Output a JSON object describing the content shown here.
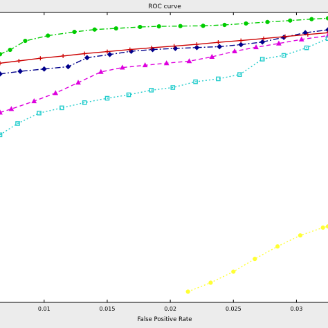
{
  "chart_data": {
    "type": "line",
    "title": "ROC curve",
    "xlabel": "False Positive Rate",
    "ylabel": "",
    "xlim": [
      0.0065,
      0.0325
    ],
    "ylim": [
      0.0,
      1.0
    ],
    "x_ticks": [
      0.01,
      0.015,
      0.02,
      0.025,
      0.03
    ],
    "x_tick_labels": [
      "0.01",
      "0.015",
      "0.02",
      "0.025",
      "0.03"
    ],
    "grid": false,
    "series": [
      {
        "color": "#00cc00",
        "dash": "7,3,2,3",
        "marker": "circle",
        "x": [
          0.0065,
          0.0073,
          0.0085,
          0.0103,
          0.0124,
          0.014,
          0.0157,
          0.0176,
          0.0191,
          0.0208,
          0.0226,
          0.0243,
          0.026,
          0.0277,
          0.0295,
          0.0312,
          0.0325
        ],
        "y": [
          0.856,
          0.871,
          0.902,
          0.92,
          0.933,
          0.941,
          0.945,
          0.95,
          0.952,
          0.953,
          0.954,
          0.957,
          0.962,
          0.967,
          0.972,
          0.977,
          0.98
        ]
      },
      {
        "color": "#00008b",
        "dash": "8,3,2,3",
        "marker": "diamond",
        "x": [
          0.0065,
          0.0081,
          0.01,
          0.0119,
          0.0134,
          0.0152,
          0.0169,
          0.0186,
          0.0204,
          0.0221,
          0.0239,
          0.0256,
          0.0273,
          0.029,
          0.0307,
          0.0325
        ],
        "y": [
          0.788,
          0.797,
          0.805,
          0.813,
          0.844,
          0.855,
          0.866,
          0.872,
          0.876,
          0.879,
          0.882,
          0.889,
          0.898,
          0.914,
          0.93,
          0.94
        ]
      },
      {
        "color": "#cc0000",
        "dash": "",
        "marker": "plus",
        "x": [
          0.0065,
          0.008,
          0.0097,
          0.0115,
          0.0132,
          0.015,
          0.0168,
          0.0185,
          0.0203,
          0.0221,
          0.0238,
          0.0256,
          0.0274,
          0.0291,
          0.0309,
          0.0325
        ],
        "y": [
          0.825,
          0.833,
          0.842,
          0.85,
          0.858,
          0.865,
          0.872,
          0.878,
          0.884,
          0.89,
          0.897,
          0.903,
          0.91,
          0.917,
          0.924,
          0.93
        ]
      },
      {
        "color": "#dd00dd",
        "dash": "6,4",
        "marker": "triangle",
        "x": [
          0.0065,
          0.0074,
          0.0092,
          0.0109,
          0.0127,
          0.0145,
          0.0162,
          0.018,
          0.0197,
          0.0215,
          0.0233,
          0.0251,
          0.0268,
          0.0286,
          0.0304,
          0.0325
        ],
        "y": [
          0.655,
          0.667,
          0.694,
          0.722,
          0.758,
          0.795,
          0.81,
          0.818,
          0.825,
          0.832,
          0.847,
          0.866,
          0.88,
          0.893,
          0.907,
          0.92
        ]
      },
      {
        "color": "#22cccc",
        "dash": "2,3",
        "marker": "square",
        "x": [
          0.0065,
          0.0079,
          0.0096,
          0.0114,
          0.0132,
          0.015,
          0.0167,
          0.0185,
          0.0202,
          0.022,
          0.0238,
          0.0255,
          0.0273,
          0.029,
          0.0308,
          0.0325
        ],
        "y": [
          0.578,
          0.617,
          0.653,
          0.671,
          0.689,
          0.704,
          0.716,
          0.732,
          0.741,
          0.761,
          0.771,
          0.786,
          0.839,
          0.852,
          0.878,
          0.91
        ]
      },
      {
        "color": "#ffff33",
        "dash": "2,3",
        "marker": "circle",
        "x": [
          0.0214,
          0.0232,
          0.025,
          0.0267,
          0.0285,
          0.0303,
          0.0321,
          0.0325
        ],
        "y": [
          0.037,
          0.068,
          0.106,
          0.15,
          0.193,
          0.231,
          0.258,
          0.262
        ]
      }
    ]
  }
}
